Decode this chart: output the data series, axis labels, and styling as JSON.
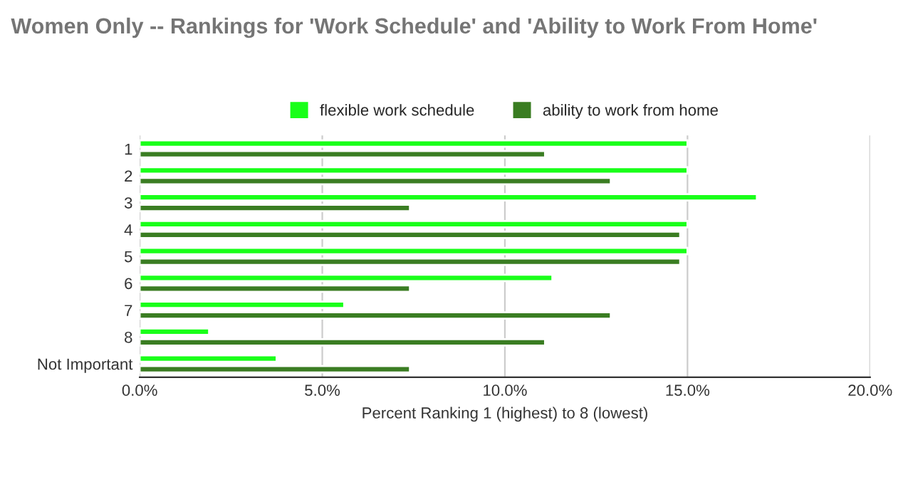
{
  "chart_data": {
    "type": "bar",
    "orientation": "horizontal",
    "title": "Women Only -- Rankings for 'Work Schedule' and 'Ability to Work From Home'",
    "xlabel": "Percent Ranking 1 (highest) to 8 (lowest)",
    "categories": [
      "1",
      "2",
      "3",
      "4",
      "5",
      "6",
      "7",
      "8",
      "Not Important"
    ],
    "series": [
      {
        "name": "flexible work schedule",
        "color": "#19ff19",
        "values": [
          15.0,
          15.0,
          16.9,
          15.0,
          15.0,
          11.3,
          5.6,
          1.9,
          3.75
        ]
      },
      {
        "name": "ability to work from home",
        "color": "#3a7d22",
        "values": [
          11.1,
          12.9,
          7.4,
          14.8,
          14.8,
          7.4,
          12.9,
          11.1,
          7.4
        ]
      }
    ],
    "xlim": [
      0,
      20
    ],
    "xticks": [
      {
        "value": 0,
        "label": "0.0%"
      },
      {
        "value": 5,
        "label": "5.0%"
      },
      {
        "value": 10,
        "label": "10.0%"
      },
      {
        "value": 15,
        "label": "15.0%"
      },
      {
        "value": 20,
        "label": "20.0%"
      }
    ],
    "grid": "x",
    "legend": "top"
  }
}
